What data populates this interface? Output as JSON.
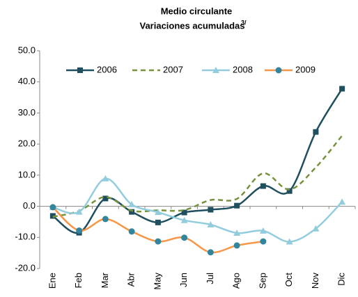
{
  "chart_data": {
    "type": "line",
    "title": "Medio circulante",
    "subtitle": "Variaciones acumuladas",
    "subtitle_note": "3/",
    "categories": [
      "Ene",
      "Feb",
      "Mar",
      "Abr",
      "May",
      "Jun",
      "Jul",
      "Ago",
      "Sep",
      "Oct",
      "Nov",
      "Dic"
    ],
    "series": [
      {
        "name": "2006",
        "color": "#1f4e5f",
        "marker": "square",
        "marker_color": "#1f4e5f",
        "dash": false,
        "values": [
          -3.1,
          -8.5,
          2.5,
          -1.8,
          -5.2,
          -2.0,
          -1.1,
          0.2,
          6.5,
          4.9,
          23.9,
          37.8
        ]
      },
      {
        "name": "2007",
        "color": "#76923c",
        "marker": "none",
        "marker_color": "#76923c",
        "dash": true,
        "values": [
          -3.4,
          -1.5,
          3.0,
          -1.4,
          -1.3,
          -1.2,
          2.0,
          2.4,
          10.6,
          5.4,
          12.5,
          22.7
        ]
      },
      {
        "name": "2008",
        "color": "#93cddd",
        "marker": "triangle",
        "marker_color": "#93cddd",
        "dash": false,
        "values": [
          -0.3,
          -1.8,
          8.9,
          0.6,
          -1.9,
          -4.5,
          -5.9,
          -8.6,
          -7.9,
          -11.4,
          -7.2,
          1.4
        ]
      },
      {
        "name": "2009",
        "color": "#f79646",
        "marker": "circle",
        "marker_color": "#31859c",
        "dash": false,
        "values": [
          -0.3,
          -7.8,
          -4.1,
          -8.1,
          -11.3,
          -10.1,
          -14.8,
          -12.6,
          -11.3,
          null,
          null,
          null
        ]
      }
    ],
    "ylim": [
      -20,
      50
    ],
    "yticks": [
      {
        "value": -20,
        "label": "-20.0"
      },
      {
        "value": -10,
        "label": "-10.0"
      },
      {
        "value": 0,
        "label": "0.0"
      },
      {
        "value": 10,
        "label": "10.0"
      },
      {
        "value": 20,
        "label": "20.0"
      },
      {
        "value": 30,
        "label": "30.0"
      },
      {
        "value": 40,
        "label": "40.0"
      },
      {
        "value": 50,
        "label": "50.0"
      }
    ],
    "grid": false,
    "smooth": true,
    "legend": "top"
  }
}
